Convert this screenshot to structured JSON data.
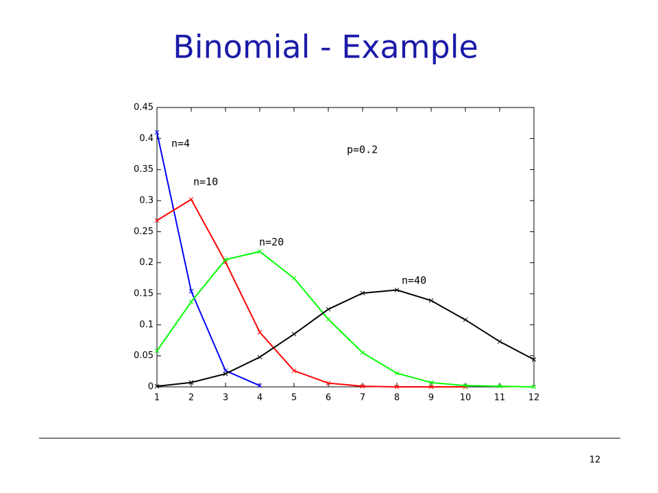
{
  "chart_data": {
    "type": "line",
    "title": "Binomial - Example",
    "x": [
      1,
      2,
      3,
      4,
      5,
      6,
      7,
      8,
      9,
      10,
      11,
      12
    ],
    "series": [
      {
        "name": "n=4",
        "color": "#0000ff",
        "values": [
          0.41,
          0.154,
          0.026,
          0.002,
          null,
          null,
          null,
          null,
          null,
          null,
          null,
          null
        ]
      },
      {
        "name": "n=10",
        "color": "#ff0000",
        "values": [
          0.268,
          0.302,
          0.201,
          0.088,
          0.026,
          0.006,
          0.001,
          0,
          0,
          0,
          null,
          null
        ]
      },
      {
        "name": "n=20",
        "color": "#00ff00",
        "values": [
          0.058,
          0.137,
          0.205,
          0.218,
          0.175,
          0.109,
          0.055,
          0.022,
          0.007,
          0.002,
          0.001,
          0
        ]
      },
      {
        "name": "n=40",
        "color": "#000000",
        "values": [
          0.001,
          0.007,
          0.021,
          0.048,
          0.085,
          0.125,
          0.151,
          0.156,
          0.139,
          0.108,
          0.073,
          0.044
        ]
      }
    ],
    "annotations": [
      "p=0.2"
    ],
    "xlim": [
      1,
      12
    ],
    "xticks": [
      1,
      2,
      3,
      4,
      5,
      6,
      7,
      8,
      9,
      10,
      11,
      12
    ],
    "ylim": [
      0,
      0.45
    ],
    "yticks": [
      0,
      0.05,
      0.1,
      0.15,
      0.2,
      0.25,
      0.3,
      0.35,
      0.4,
      0.45
    ],
    "grid": false
  },
  "page_number": "12"
}
